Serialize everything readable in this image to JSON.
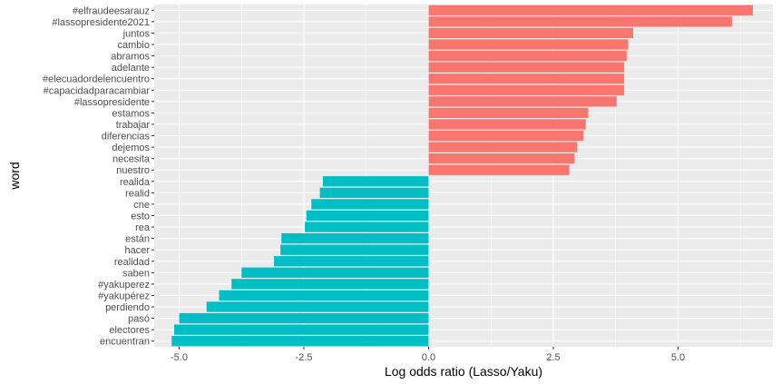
{
  "chart_data": {
    "type": "bar",
    "orientation": "horizontal",
    "xlabel": "Log odds ratio (Lasso/Yaku)",
    "ylabel": "word",
    "xlim": [
      -5.5,
      6.9
    ],
    "xticks": [
      -5.0,
      -2.5,
      0.0,
      2.5,
      5.0
    ],
    "xtick_labels": [
      "-5.0",
      "-2.5",
      "0.0",
      "2.5",
      "5.0"
    ],
    "grid": true,
    "legend": "none",
    "colors": {
      "positive": "#F8766D",
      "negative": "#00BFC4",
      "panel": "#EBEBEB",
      "grid": "#FFFFFF"
    },
    "categories": [
      "#elfraudeesarauz",
      "#lassopresidente2021",
      "juntos",
      "cambio",
      "abramos",
      "adelante",
      "#elecuadordelencuentro",
      "#capacidadparacambiar",
      "#lassopresidente",
      "estamos",
      "trabajar",
      "diferencias",
      "dejemos",
      "necesita",
      "nuestro",
      "realida",
      "realid",
      "cne",
      "esto",
      "rea",
      "están",
      "hacer",
      "realidad",
      "saben",
      "#yakuperez",
      "#yakupérez",
      "perdiendo",
      "pasó",
      "electores",
      "encuentran"
    ],
    "values": [
      6.5,
      6.08,
      4.1,
      4.0,
      3.97,
      3.92,
      3.92,
      3.92,
      3.77,
      3.2,
      3.15,
      3.1,
      2.98,
      2.92,
      2.82,
      -2.12,
      -2.18,
      -2.35,
      -2.45,
      -2.48,
      -2.95,
      -2.97,
      -3.1,
      -3.75,
      -3.95,
      -4.2,
      -4.45,
      -5.0,
      -5.1,
      -5.15
    ]
  }
}
